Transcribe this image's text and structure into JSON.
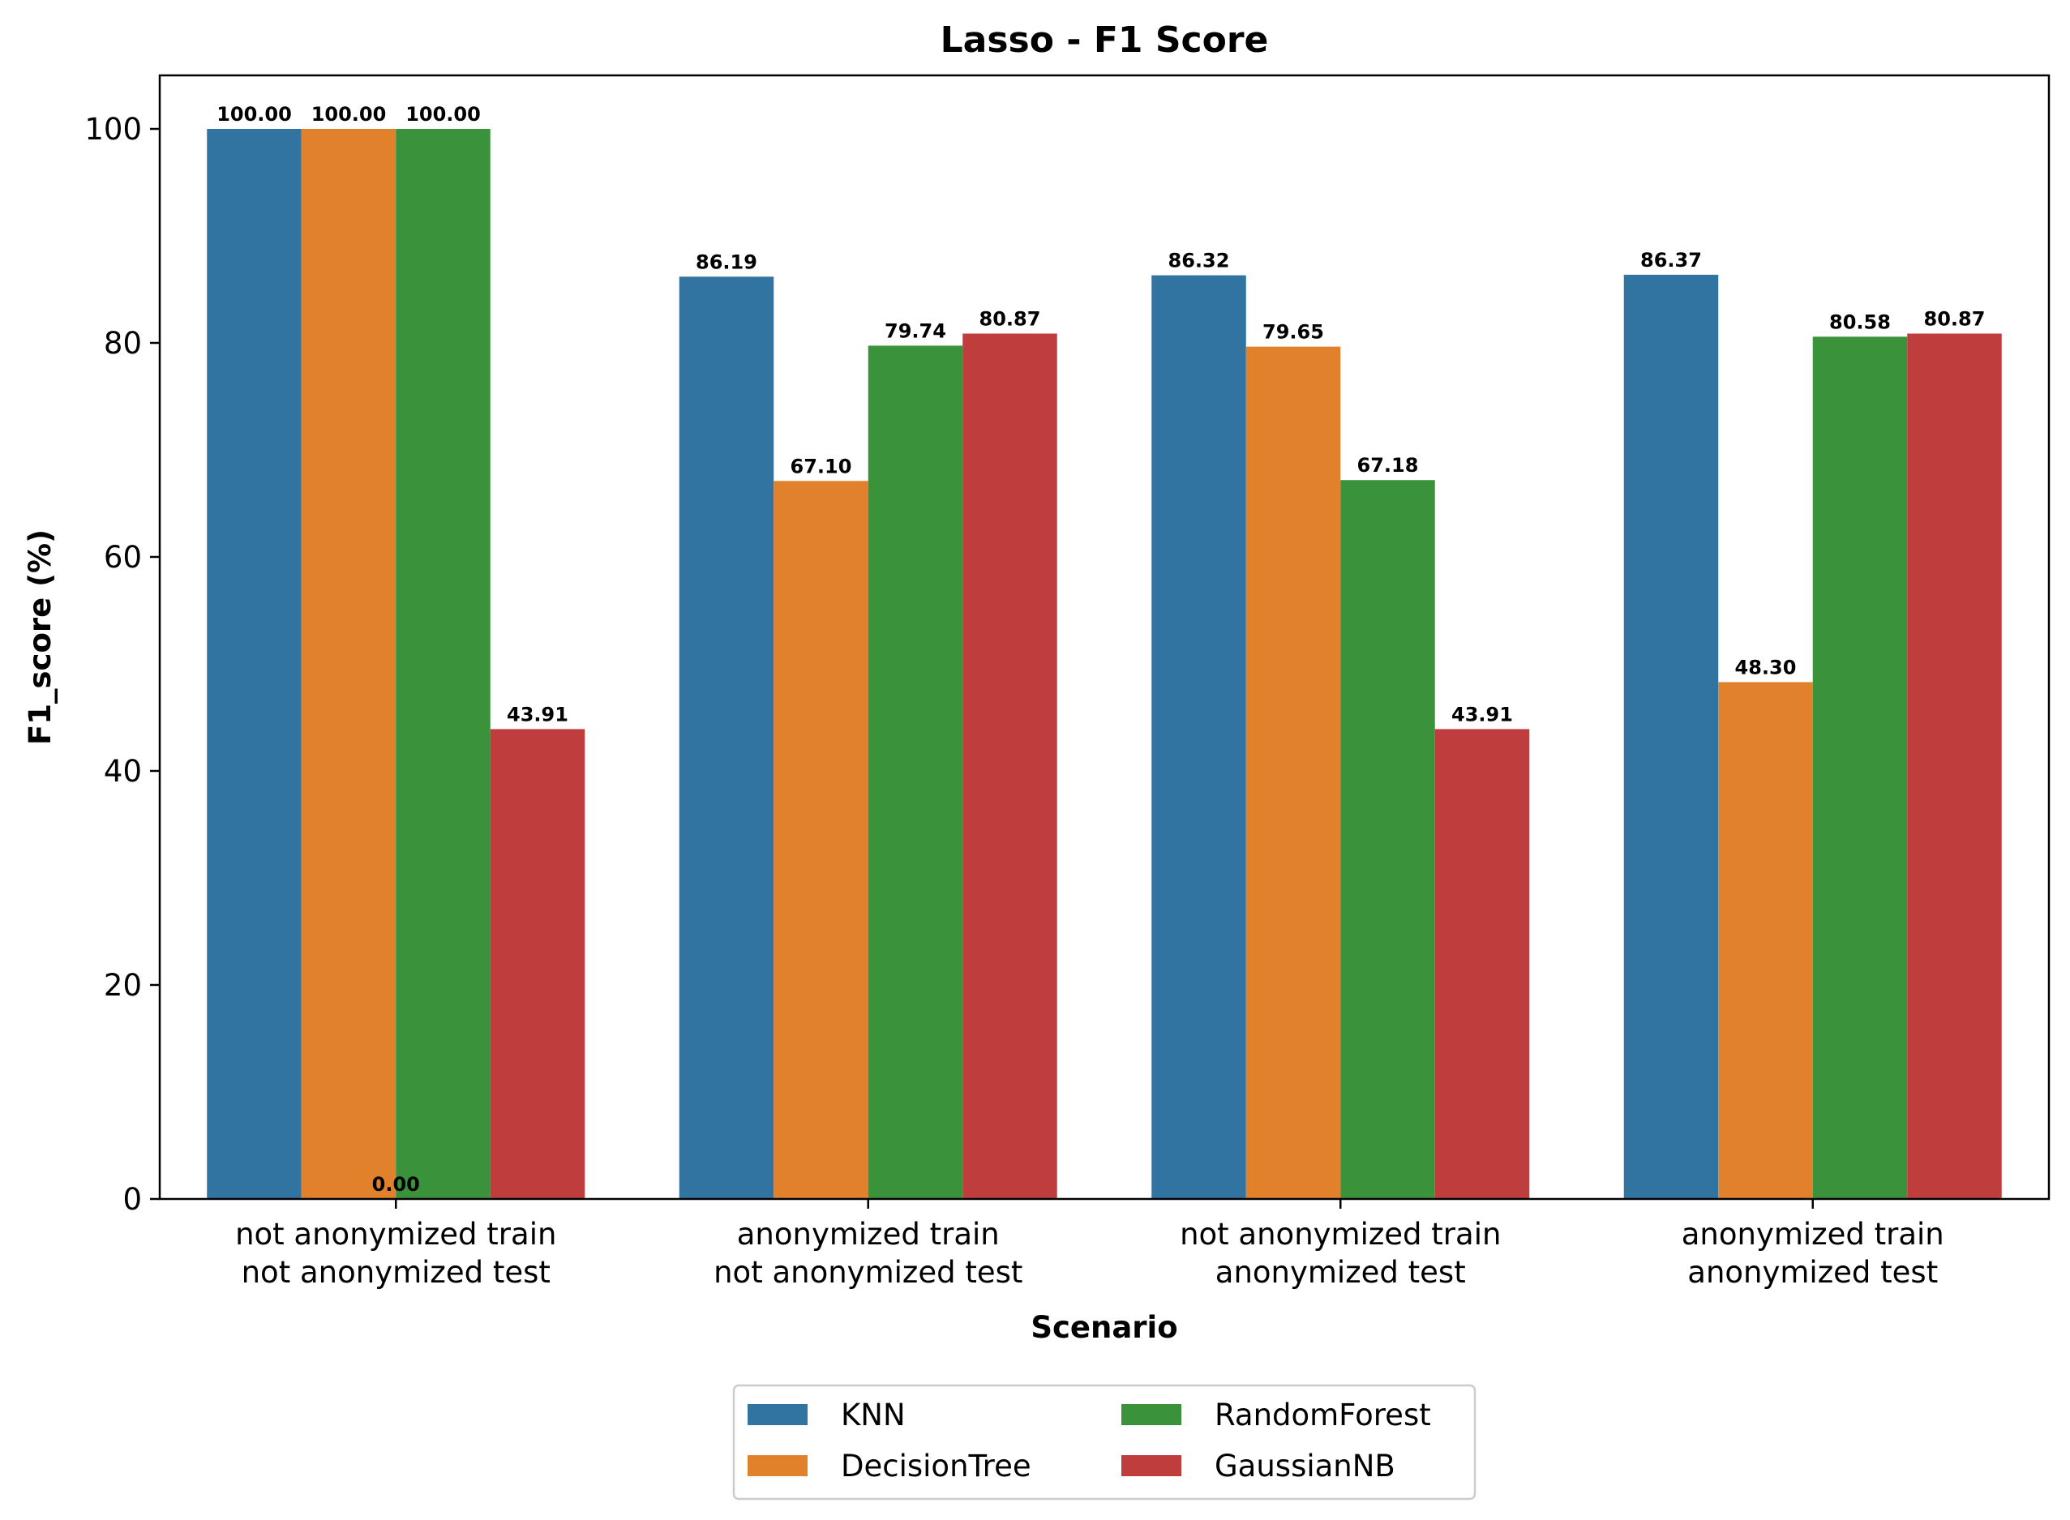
{
  "chart_data": {
    "type": "bar",
    "title": "Lasso - F1 Score",
    "xlabel": "Scenario",
    "ylabel": "F1_score (%)",
    "ylim": [
      0,
      105
    ],
    "yticks": [
      0,
      20,
      40,
      60,
      80,
      100
    ],
    "grid": false,
    "legend_position": "bottom-center",
    "categories": [
      [
        "not anonymized train",
        "not anonymized test"
      ],
      [
        "anonymized train",
        "not anonymized test"
      ],
      [
        "not anonymized train",
        "anonymized test"
      ],
      [
        "anonymized train",
        "anonymized test"
      ]
    ],
    "series": [
      {
        "name": "KNN",
        "color": "#3274a1",
        "values": [
          100.0,
          86.19,
          86.32,
          86.37
        ],
        "labels": [
          "100.00",
          "86.19",
          "86.32",
          "86.37"
        ]
      },
      {
        "name": "DecisionTree",
        "color": "#e1812c",
        "values": [
          100.0,
          67.1,
          79.65,
          48.3
        ],
        "labels": [
          "100.00",
          "67.10",
          "79.65",
          "48.30"
        ]
      },
      {
        "name": "RandomForest",
        "color": "#3a923a",
        "values": [
          100.0,
          79.74,
          67.18,
          80.58
        ],
        "labels": [
          "100.00",
          "79.74",
          "67.18",
          "80.58"
        ]
      },
      {
        "name": "GaussianNB",
        "color": "#c03d3e",
        "values": [
          43.91,
          80.87,
          43.91,
          80.87
        ],
        "labels": [
          "43.91",
          "80.87",
          "43.91",
          "80.87"
        ]
      }
    ],
    "extra_annotations": [
      {
        "text": "0.00",
        "category_index": 0,
        "y": 0
      }
    ]
  }
}
